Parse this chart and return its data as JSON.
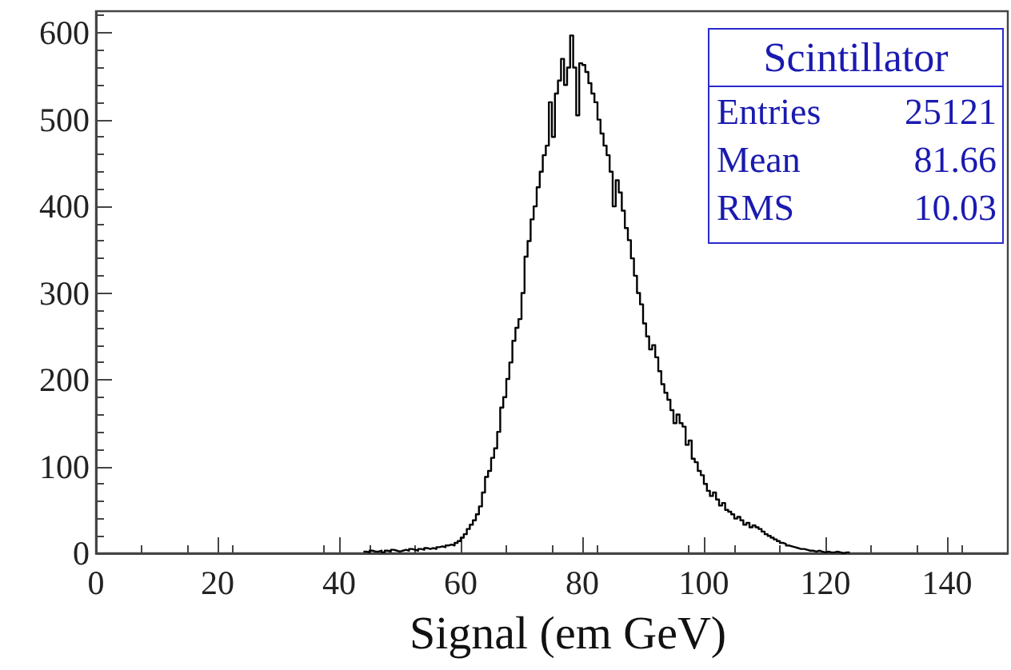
{
  "chart_data": {
    "type": "histogram",
    "title": "Scintillator",
    "xlabel": "Signal (em GeV)",
    "annotations": [
      "Entries",
      "25121",
      "Mean",
      "81.66",
      "RMS",
      "10.03"
    ],
    "color": "#000000",
    "bins": [
      44,
      44.5,
      45,
      45.5,
      46,
      46.5,
      47,
      47.5,
      48,
      48.5,
      49,
      49.5,
      50,
      50.5,
      51,
      51.5,
      52,
      52.5,
      53,
      53.5,
      54,
      54.5,
      55,
      55.5,
      56,
      56.5,
      57,
      57.5,
      58,
      58.5,
      59,
      59.5,
      60,
      60.5,
      61,
      61.5,
      62,
      62.5,
      63,
      63.5,
      64,
      64.5,
      65,
      65.5,
      66,
      66.5,
      67,
      67.5,
      68,
      68.5,
      69,
      69.5,
      70,
      70.5,
      71,
      71.5,
      72,
      72.5,
      73,
      73.5,
      74,
      74.5,
      75,
      75.5,
      76,
      76.5,
      77,
      77.5,
      78,
      78.5,
      79,
      79.5,
      80,
      80.5,
      81,
      81.5,
      82,
      82.5,
      83,
      83.5,
      84,
      84.5,
      85,
      85.5,
      86,
      86.5,
      87,
      87.5,
      88,
      88.5,
      89,
      89.5,
      90,
      90.5,
      91,
      91.5,
      92,
      92.5,
      93,
      93.5,
      94,
      94.5,
      95,
      95.5,
      96,
      96.5,
      97,
      97.5,
      98,
      98.5,
      99,
      99.5,
      100,
      100.5,
      101,
      101.5,
      102,
      102.5,
      103,
      103.5,
      104,
      104.5,
      105,
      105.5,
      106,
      106.5,
      107,
      107.5,
      108,
      108.5,
      109,
      109.5,
      110,
      110.5,
      111,
      111.5,
      112,
      112.5,
      113,
      113.5,
      114,
      114.5,
      115,
      115.5,
      116,
      116.5,
      117,
      117.5,
      118,
      118.5,
      119,
      119.5,
      120,
      120.5,
      121,
      121.5,
      122,
      122.5,
      123,
      123.5,
      124
    ],
    "values": [
      2,
      1,
      3,
      2,
      2,
      3,
      1,
      3,
      2,
      4,
      3,
      2,
      3,
      4,
      3,
      5,
      4,
      3,
      5,
      4,
      6,
      5,
      6,
      5,
      7,
      8,
      7,
      9,
      10,
      9,
      12,
      14,
      18,
      22,
      28,
      33,
      38,
      45,
      54,
      70,
      88,
      95,
      110,
      121,
      140,
      168,
      180,
      201,
      220,
      245,
      260,
      270,
      300,
      342,
      360,
      385,
      400,
      422,
      440,
      459,
      470,
      520,
      480,
      530,
      545,
      570,
      540,
      560,
      597,
      560,
      505,
      565,
      563,
      555,
      542,
      530,
      520,
      500,
      484,
      470,
      459,
      440,
      400,
      430,
      416,
      395,
      375,
      361,
      340,
      320,
      300,
      287,
      265,
      250,
      235,
      240,
      226,
      210,
      195,
      185,
      177,
      165,
      150,
      160,
      150,
      146,
      125,
      130,
      109,
      105,
      95,
      90,
      80,
      72,
      66,
      70,
      62,
      55,
      58,
      50,
      48,
      45,
      40,
      42,
      38,
      33,
      35,
      30,
      32,
      30,
      28,
      25,
      22,
      20,
      18,
      16,
      14,
      12,
      11,
      9,
      8,
      7,
      6,
      5,
      5,
      4,
      3,
      3,
      2,
      3,
      2,
      1,
      2,
      1,
      1,
      2,
      1,
      0,
      1,
      1
    ],
    "xlim": [
      0,
      150
    ],
    "xticks": [
      0,
      20,
      40,
      60,
      80,
      100,
      120,
      140
    ],
    "ylim": [
      0,
      625
    ],
    "yticks": [
      0,
      100,
      200,
      300,
      400,
      500,
      600
    ],
    "grid": false
  }
}
